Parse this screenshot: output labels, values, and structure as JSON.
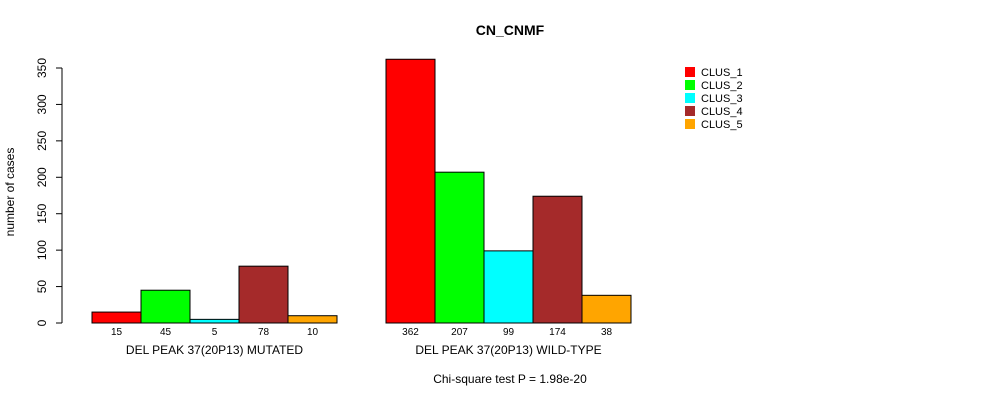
{
  "chart_data": {
    "type": "bar",
    "title": "CN_CNMF",
    "ylabel": "number of cases",
    "xlabel": "",
    "ylim": [
      0,
      350
    ],
    "yticks": [
      0,
      50,
      100,
      150,
      200,
      250,
      300,
      350
    ],
    "categories": [
      "DEL PEAK 37(20P13) MUTATED",
      "DEL PEAK 37(20P13) WILD-TYPE"
    ],
    "series": [
      {
        "name": "CLUS_1",
        "color": "#ff0000",
        "values": [
          15,
          362
        ]
      },
      {
        "name": "CLUS_2",
        "color": "#00ff00",
        "values": [
          45,
          207
        ]
      },
      {
        "name": "CLUS_3",
        "color": "#00ffff",
        "values": [
          5,
          99
        ]
      },
      {
        "name": "CLUS_4",
        "color": "#a52a2a",
        "values": [
          78,
          174
        ]
      },
      {
        "name": "CLUS_5",
        "color": "#ffa500",
        "values": [
          10,
          38
        ]
      }
    ],
    "legend": "top-right",
    "grid": false,
    "footnote": "Chi-square test P = 1.98e-20"
  }
}
